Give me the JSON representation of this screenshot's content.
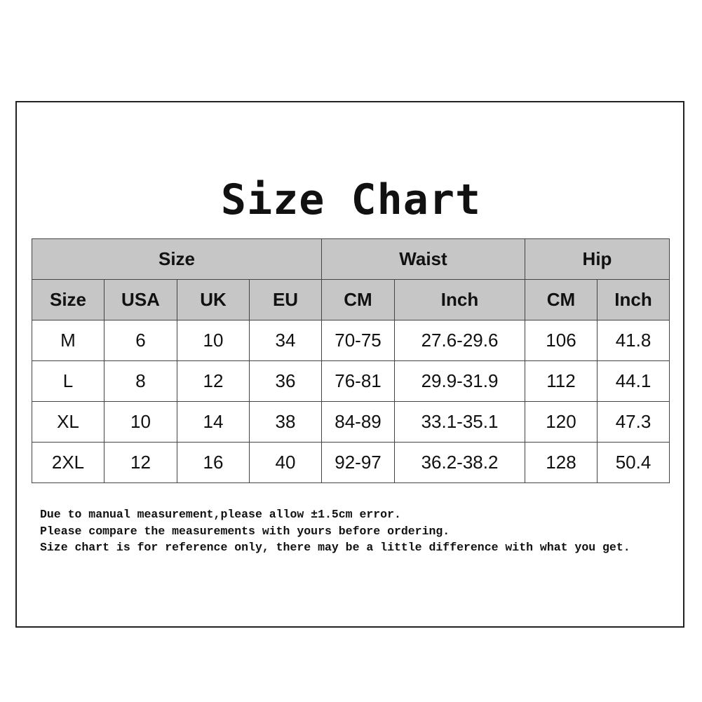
{
  "title": "Size Chart",
  "header_groups": [
    "Size",
    "Waist",
    "Hip"
  ],
  "columns": [
    "Size",
    "USA",
    "UK",
    "EU",
    "CM",
    "Inch",
    "CM",
    "Inch"
  ],
  "rows": [
    [
      "M",
      "6",
      "10",
      "34",
      "70-75",
      "27.6-29.6",
      "106",
      "41.8"
    ],
    [
      "L",
      "8",
      "12",
      "36",
      "76-81",
      "29.9-31.9",
      "112",
      "44.1"
    ],
    [
      "XL",
      "10",
      "14",
      "38",
      "84-89",
      "33.1-35.1",
      "120",
      "47.3"
    ],
    [
      "2XL",
      "12",
      "16",
      "40",
      "92-97",
      "36.2-38.2",
      "128",
      "50.4"
    ]
  ],
  "notes": [
    "Due to manual measurement,please allow ±1.5cm error.",
    "Please compare the measurements with yours before ordering.",
    "Size chart is for reference only, there may be a little difference with what you get."
  ],
  "colors": {
    "header_bg": "#c6c6c6"
  }
}
